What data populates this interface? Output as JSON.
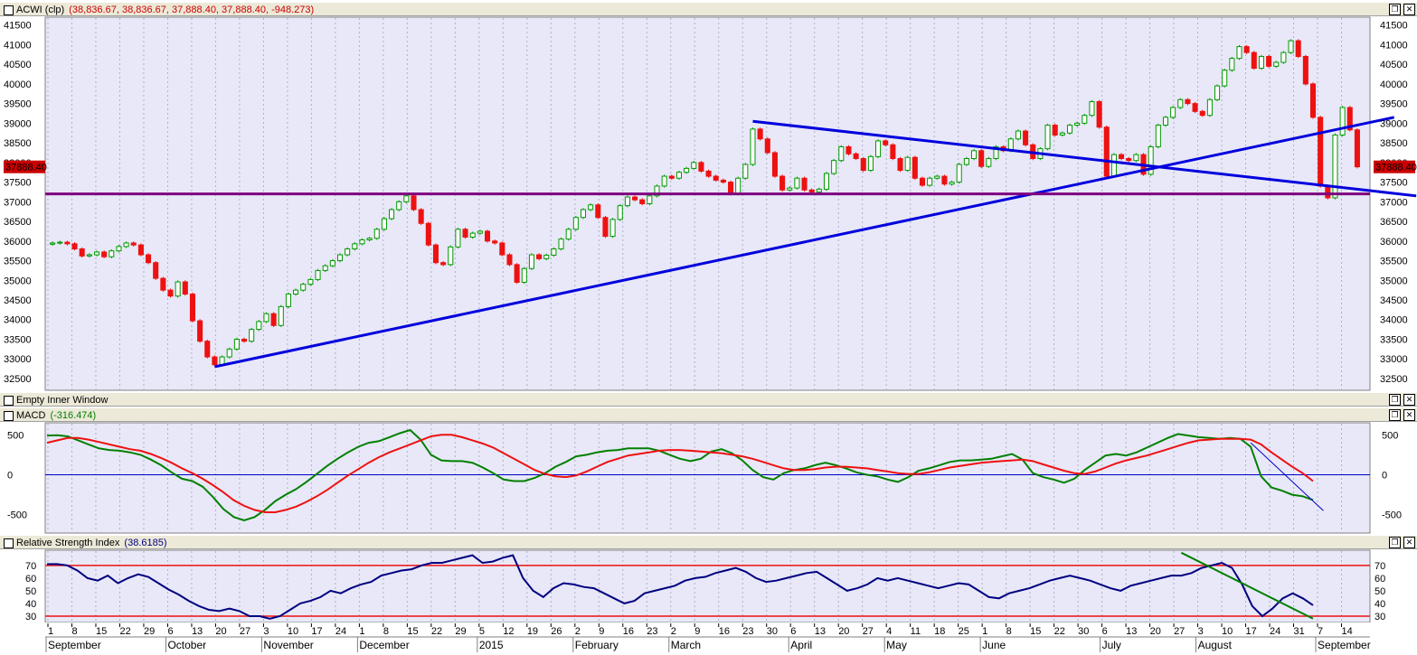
{
  "panes": {
    "price": {
      "name": "ACWI (clp)",
      "values": "(38,836.67, 38,836.67, 37,888.40, 37,888.40, -948.273)",
      "value_color": "#cc0000"
    },
    "empty": {
      "name": "Empty Inner Window"
    },
    "macd": {
      "name": "MACD",
      "values": "(-316.474)",
      "value_color": "#008000"
    },
    "rsi": {
      "name": "Relative Strength Index",
      "values": "(38.6185)",
      "value_color": "#000080"
    }
  },
  "window_buttons": {
    "restore": "❐",
    "close": "✕"
  },
  "last_price_label": "37888.40",
  "colors": {
    "pane_bg": "#e8e8f8",
    "up_candle": "#009900",
    "down_candle": "#ee1111",
    "trendline": "#0000dd",
    "support": "#800080",
    "macd_line": "#008000",
    "signal_line": "#ee1111",
    "rsi_line": "#000080",
    "rsi_bounds": "#ee1111"
  },
  "chart_data": [
    {
      "type": "candlestick",
      "title": "ACWI (clp)",
      "ylim": [
        32200,
        41700
      ],
      "yticks": [
        32500,
        33000,
        33500,
        34000,
        34500,
        35000,
        35500,
        36000,
        36500,
        37000,
        37500,
        38000,
        38500,
        39000,
        39500,
        40000,
        40500,
        41000,
        41500
      ],
      "closes": [
        35950,
        35970,
        35930,
        35800,
        35620,
        35650,
        35720,
        35600,
        35750,
        35860,
        35950,
        35900,
        35650,
        35450,
        35050,
        34750,
        34600,
        34960,
        34650,
        33970,
        33450,
        33050,
        32850,
        33050,
        33250,
        33500,
        33450,
        33750,
        33950,
        34150,
        33850,
        34330,
        34650,
        34750,
        34900,
        35020,
        35250,
        35370,
        35500,
        35650,
        35800,
        35930,
        36030,
        36070,
        36300,
        36570,
        36800,
        37000,
        37150,
        36800,
        36450,
        35900,
        35450,
        35400,
        35850,
        36300,
        36100,
        36200,
        36250,
        36000,
        35950,
        35650,
        35400,
        34950,
        35300,
        35650,
        35550,
        35640,
        35800,
        36050,
        36300,
        36600,
        36800,
        36920,
        36600,
        36120,
        36550,
        36900,
        37120,
        37050,
        36950,
        37150,
        37400,
        37650,
        37600,
        37750,
        37850,
        38000,
        37780,
        37650,
        37550,
        37500,
        37200,
        37600,
        37950,
        38850,
        38600,
        38250,
        37650,
        37300,
        37350,
        37600,
        37300,
        37250,
        37320,
        37720,
        38050,
        38400,
        38220,
        38100,
        37800,
        38150,
        38550,
        38450,
        38100,
        37800,
        38130,
        37600,
        37420,
        37600,
        37650,
        37450,
        37500,
        37950,
        38100,
        38300,
        37900,
        38100,
        38400,
        38300,
        38600,
        38800,
        38450,
        38100,
        38350,
        38950,
        38700,
        38750,
        38950,
        39000,
        39200,
        39550,
        38900,
        37650,
        38200,
        38100,
        38050,
        38200,
        37700,
        38400,
        38950,
        39150,
        39400,
        39600,
        39500,
        39300,
        39200,
        39600,
        39950,
        40350,
        40650,
        40950,
        40800,
        40400,
        40700,
        40450,
        40550,
        40800,
        41100,
        40700,
        40000,
        39150,
        37400,
        37100,
        38700,
        39400,
        38830,
        37890
      ],
      "annotations": [
        {
          "type": "trendline",
          "from": [
            22,
            32800
          ],
          "to": [
            182,
            39150
          ]
        },
        {
          "type": "trendline",
          "from": [
            95,
            39050
          ],
          "to": [
            185,
            37150
          ]
        },
        {
          "type": "hline",
          "y": 37200
        }
      ]
    },
    {
      "type": "line",
      "title": "MACD",
      "ylim": [
        -730,
        650
      ],
      "yticks": [
        -500,
        0,
        500
      ],
      "series": [
        {
          "name": "MACD",
          "values": [
            490,
            495,
            480,
            430,
            380,
            330,
            310,
            300,
            280,
            250,
            190,
            120,
            30,
            -50,
            -80,
            -150,
            -280,
            -430,
            -530,
            -570,
            -530,
            -440,
            -330,
            -250,
            -180,
            -90,
            10,
            110,
            200,
            280,
            350,
            400,
            420,
            470,
            520,
            560,
            440,
            250,
            180,
            170,
            170,
            150,
            90,
            20,
            -60,
            -80,
            -80,
            -40,
            20,
            100,
            160,
            230,
            250,
            280,
            300,
            310,
            330,
            330,
            330,
            300,
            250,
            200,
            170,
            200,
            290,
            320,
            270,
            180,
            60,
            -30,
            -60,
            20,
            60,
            80,
            120,
            150,
            120,
            80,
            30,
            0,
            -20,
            -60,
            -90,
            -30,
            50,
            80,
            120,
            160,
            180,
            180,
            190,
            200,
            230,
            260,
            190,
            20,
            -30,
            -60,
            -100,
            -50,
            60,
            150,
            240,
            260,
            240,
            280,
            340,
            400,
            460,
            510,
            490,
            470,
            460,
            450,
            460,
            450,
            350,
            -20,
            -160,
            -200,
            -250,
            -270,
            -316
          ]
        },
        {
          "name": "Signal",
          "values": [
            400,
            430,
            460,
            460,
            440,
            410,
            380,
            350,
            320,
            300,
            260,
            210,
            150,
            80,
            20,
            -50,
            -130,
            -220,
            -320,
            -390,
            -440,
            -470,
            -470,
            -440,
            -400,
            -340,
            -270,
            -190,
            -100,
            -10,
            70,
            150,
            220,
            280,
            330,
            380,
            430,
            480,
            500,
            500,
            470,
            430,
            390,
            340,
            270,
            200,
            130,
            60,
            10,
            -20,
            -30,
            -10,
            40,
            100,
            160,
            200,
            240,
            260,
            280,
            300,
            310,
            310,
            300,
            290,
            280,
            270,
            250,
            230,
            200,
            160,
            120,
            80,
            60,
            60,
            70,
            90,
            100,
            100,
            90,
            80,
            60,
            40,
            20,
            10,
            10,
            30,
            60,
            90,
            110,
            130,
            150,
            160,
            170,
            180,
            190,
            170,
            130,
            90,
            50,
            20,
            10,
            40,
            90,
            140,
            180,
            210,
            240,
            280,
            320,
            360,
            400,
            430,
            440,
            450,
            450,
            450,
            440,
            380,
            280,
            190,
            100,
            20,
            -80
          ]
        }
      ],
      "annotations": [
        {
          "type": "trendline",
          "from": [
            116,
            400
          ],
          "to": [
            123,
            -450
          ]
        }
      ]
    },
    {
      "type": "line",
      "title": "Relative Strength Index",
      "ylim": [
        25,
        82
      ],
      "yticks": [
        30,
        40,
        50,
        60,
        70
      ],
      "bounds": [
        30,
        70
      ],
      "series": [
        {
          "name": "RSI",
          "values": [
            71,
            71,
            70,
            66,
            60,
            58,
            62,
            56,
            60,
            63,
            61,
            56,
            51,
            47,
            42,
            38,
            35,
            34,
            36,
            34,
            30,
            30,
            28,
            30,
            35,
            40,
            42,
            45,
            50,
            48,
            52,
            55,
            57,
            62,
            64,
            66,
            67,
            70,
            72,
            72,
            74,
            76,
            78,
            72,
            73,
            76,
            78,
            60,
            50,
            45,
            52,
            56,
            55,
            53,
            52,
            48,
            44,
            40,
            42,
            48,
            50,
            52,
            54,
            58,
            60,
            61,
            64,
            66,
            68,
            65,
            60,
            57,
            58,
            60,
            62,
            64,
            65,
            60,
            55,
            50,
            52,
            55,
            60,
            58,
            60,
            58,
            56,
            54,
            52,
            54,
            56,
            55,
            50,
            45,
            44,
            48,
            50,
            52,
            55,
            58,
            60,
            62,
            60,
            58,
            55,
            52,
            50,
            54,
            56,
            58,
            60,
            62,
            62,
            64,
            68,
            70,
            72,
            68,
            55,
            38,
            30,
            36,
            44,
            48,
            44,
            38.6
          ]
        }
      ],
      "annotations": [
        {
          "type": "trendline",
          "from": [
            112,
            80
          ],
          "to": [
            125,
            28
          ]
        }
      ]
    }
  ],
  "time_axis": {
    "day_ticks": [
      "1",
      "8",
      "15",
      "22",
      "29",
      "6",
      "13",
      "20",
      "27",
      "3",
      "10",
      "17",
      "24",
      "1",
      "8",
      "15",
      "22",
      "29",
      "5",
      "12",
      "19",
      "26",
      "2",
      "9",
      "16",
      "23",
      "2",
      "9",
      "16",
      "23",
      "30",
      "6",
      "13",
      "20",
      "27",
      "4",
      "11",
      "18",
      "25",
      "1",
      "8",
      "15",
      "22",
      "30",
      "6",
      "13",
      "20",
      "27",
      "3",
      "10",
      "17",
      "24",
      "31",
      "7",
      "14"
    ],
    "month_labels": [
      "September",
      "October",
      "November",
      "December",
      "2015",
      "February",
      "March",
      "April",
      "May",
      "June",
      "July",
      "August",
      "September"
    ]
  }
}
